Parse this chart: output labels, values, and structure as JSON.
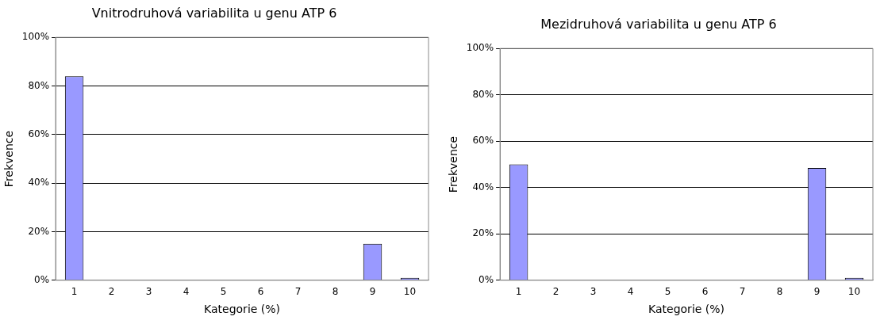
{
  "chart_data": [
    {
      "type": "bar",
      "title": "Vnitrodruhová variabilita u genu ATP 6",
      "xlabel": "Kategorie (%)",
      "ylabel": "Frekvence",
      "categories": [
        "1",
        "2",
        "3",
        "4",
        "5",
        "6",
        "7",
        "8",
        "9",
        "10"
      ],
      "series": [
        {
          "color": "#9999ff",
          "values": [
            84,
            0,
            0,
            0,
            0,
            0,
            0,
            0,
            15,
            1
          ]
        }
      ],
      "ylim": [
        0,
        100
      ],
      "yticks": [
        {
          "value": 0,
          "label": "0%"
        },
        {
          "value": 20,
          "label": "20%"
        },
        {
          "value": 40,
          "label": "40%"
        },
        {
          "value": 60,
          "label": "60%"
        },
        {
          "value": 80,
          "label": "80%"
        },
        {
          "value": 100,
          "label": "100%"
        }
      ],
      "grid": "y",
      "legend": false
    },
    {
      "type": "bar",
      "title": "Mezidruhová variabilita u genu ATP 6",
      "xlabel": "Kategorie (%)",
      "ylabel": "Frekvence",
      "categories": [
        "1",
        "2",
        "3",
        "4",
        "5",
        "6",
        "7",
        "8",
        "9",
        "10"
      ],
      "series": [
        {
          "color": "#9999ff",
          "values": [
            50,
            0,
            0,
            0,
            0,
            0,
            0,
            0,
            48.5,
            1
          ]
        }
      ],
      "ylim": [
        0,
        100
      ],
      "yticks": [
        {
          "value": 0,
          "label": "0%"
        },
        {
          "value": 20,
          "label": "20%"
        },
        {
          "value": 40,
          "label": "40%"
        },
        {
          "value": 60,
          "label": "60%"
        },
        {
          "value": 80,
          "label": "80%"
        },
        {
          "value": 100,
          "label": "100%"
        }
      ],
      "grid": "y",
      "legend": false
    }
  ]
}
